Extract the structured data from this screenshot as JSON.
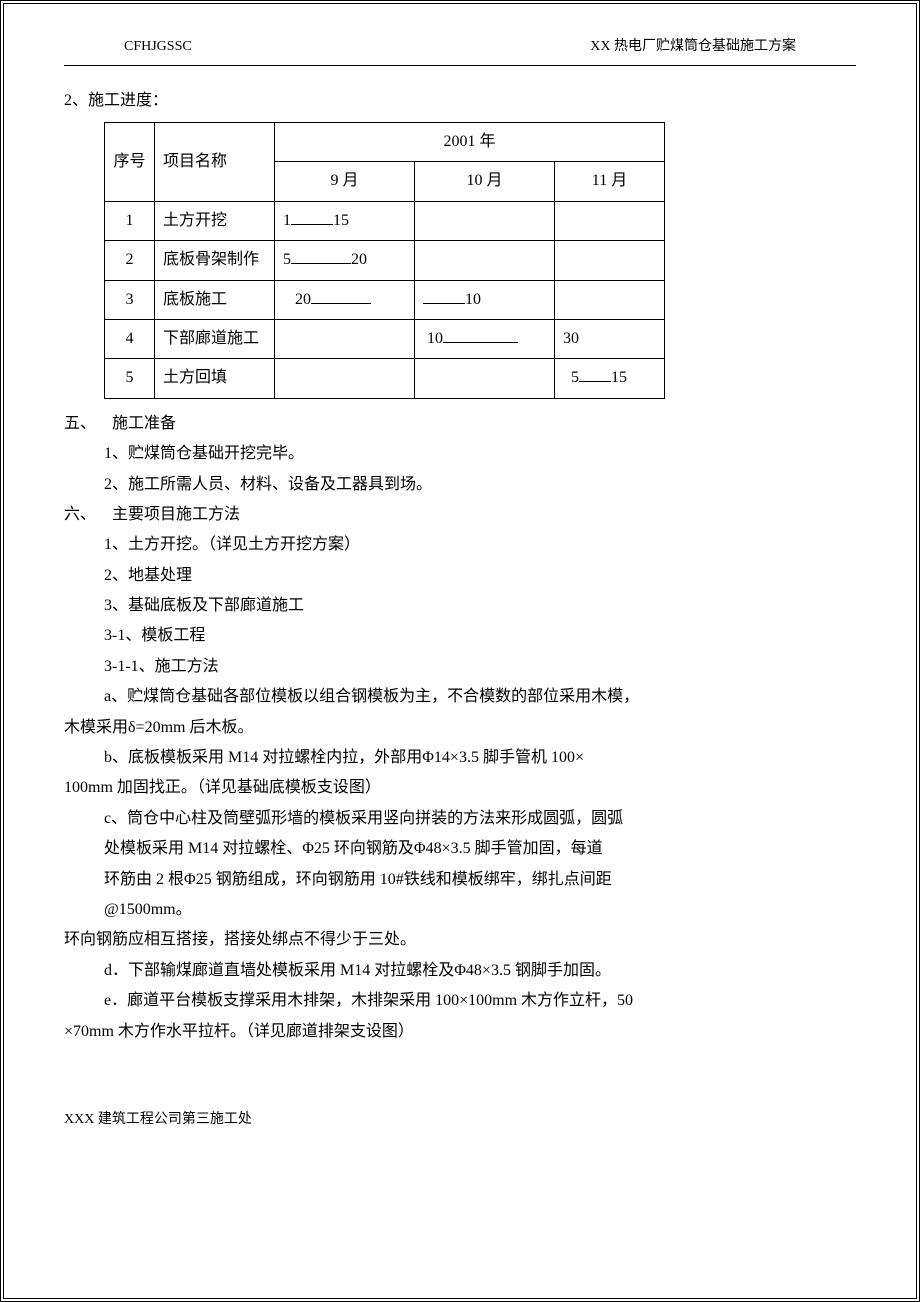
{
  "header": {
    "left": "CFHJGSSC",
    "right": "XX 热电厂贮煤筒仓基础施工方案"
  },
  "schedule": {
    "lead": "2、施工进度：",
    "year_header": "2001 年",
    "columns": {
      "seq": "序号",
      "name": "项目名称",
      "m9": "9 月",
      "m10": "10 月",
      "m11": "11 月"
    },
    "rows": [
      {
        "seq": "1",
        "name": "土方开挖",
        "m9": {
          "pre": "1",
          "bar": "w-med",
          "post": "15"
        },
        "m10": null,
        "m11": null
      },
      {
        "seq": "2",
        "name": "底板骨架制作",
        "m9": {
          "pre": "5",
          "bar": "w-long",
          "post": "20"
        },
        "m10": null,
        "m11": null
      },
      {
        "seq": "3",
        "name": "底板施工",
        "m9": {
          "pre": "   20",
          "bar": "w-long",
          "post": ""
        },
        "m10": {
          "pre": "",
          "bar": "w-med",
          "post": "10"
        },
        "m11": null
      },
      {
        "seq": "4",
        "name": "下部廊道施工",
        "m9": null,
        "m10": {
          "pre": " 10",
          "bar": "w-xlong",
          "post": ""
        },
        "m11": {
          "pre": "30",
          "bar": "",
          "post": ""
        }
      },
      {
        "seq": "5",
        "name": "土方回填",
        "m9": null,
        "m10": null,
        "m11": {
          "pre": "  5",
          "bar": "w-short",
          "post": "15"
        }
      }
    ]
  },
  "content": {
    "s5_title": "五、 施工准备",
    "s5_1": "1、贮煤筒仓基础开挖完毕。",
    "s5_2": "2、施工所需人员、材料、设备及工器具到场。",
    "s6_title": "六、 主要项目施工方法",
    "s6_1": "1、土方开挖。（详见土方开挖方案）",
    "s6_2": "2、地基处理",
    "s6_3": "3、基础底板及下部廊道施工",
    "s6_3_1": "3-1、模板工程",
    "s6_3_1_1": "3-1-1、施工方法",
    "s6_a1": "a、贮煤筒仓基础各部位模板以组合钢模板为主，不合模数的部位采用木模，",
    "s6_a2": "木模采用δ=20mm 后木板。",
    "s6_b1": "b、底板模板采用 M14 对拉螺栓内拉，外部用Φ14×3.5 脚手管机 100×",
    "s6_b2": "100mm 加固找正。（详见基础底模板支设图）",
    "s6_c1": "c、筒仓中心柱及筒壁弧形墙的模板采用竖向拼装的方法来形成圆弧，圆弧",
    "s6_c2": "处模板采用 M14 对拉螺栓、Φ25 环向钢筋及Φ48×3.5 脚手管加固，每道",
    "s6_c3": "环筋由 2 根Φ25 钢筋组成，环向钢筋用 10#铁线和模板绑牢，绑扎点间距",
    "s6_c4": "@1500mm。",
    "s6_loop": "环向钢筋应相互搭接，搭接处绑点不得少于三处。",
    "s6_d": "d．下部输煤廊道直墙处模板采用 M14 对拉螺栓及Φ48×3.5 钢脚手加固。",
    "s6_e1": "e．廊道平台模板支撑采用木排架，木排架采用 100×100mm 木方作立杆，50",
    "s6_e2": "×70mm 木方作水平拉杆。（详见廊道排架支设图）"
  },
  "footer": "XXX 建筑工程公司第三施工处"
}
